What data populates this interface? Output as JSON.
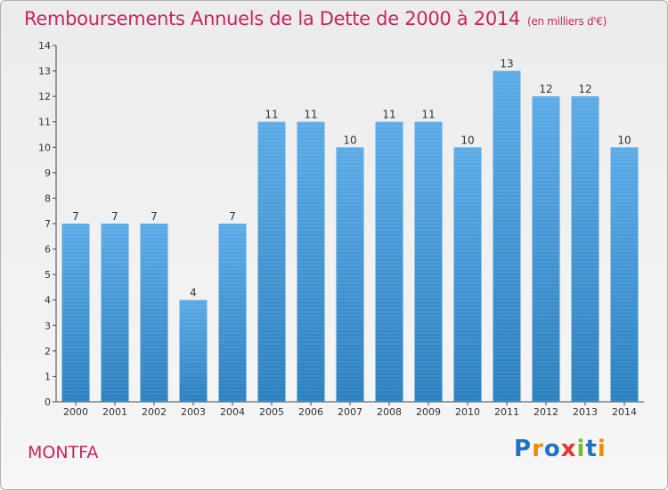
{
  "header": {
    "title": "Remboursements Annuels de la Dette de 2000 à 2014",
    "unit": "(en milliers d'€)"
  },
  "footer": {
    "commune": "MONTFA",
    "logo_letters": [
      "P",
      "r",
      "o",
      "x",
      "i",
      "t",
      "i"
    ],
    "logo_colors": [
      "#1e73be",
      "#f08c00",
      "#1e73be",
      "#e8342a",
      "#7cb82f",
      "#1e73be",
      "#f08c00"
    ]
  },
  "colors": {
    "title": "#c8245f",
    "bar_light": "#5aaae6",
    "bar_dark": "#2a7fbf",
    "axis": "#444444"
  },
  "chart_data": {
    "type": "bar",
    "title": "Remboursements Annuels de la Dette de 2000 à 2014",
    "xlabel": "",
    "ylabel": "",
    "categories": [
      "2000",
      "2001",
      "2002",
      "2003",
      "2004",
      "2005",
      "2006",
      "2007",
      "2008",
      "2009",
      "2010",
      "2011",
      "2012",
      "2013",
      "2014"
    ],
    "values": [
      7,
      7,
      7,
      4,
      7,
      11,
      11,
      10,
      11,
      11,
      10,
      13,
      12,
      12,
      10
    ],
    "ylim": [
      0,
      14
    ],
    "yticks": [
      "0",
      "1",
      "2",
      "3",
      "4",
      "5",
      "6",
      "7",
      "8",
      "9",
      "10",
      "11",
      "12",
      "13",
      "14"
    ],
    "grid": false,
    "legend": "none"
  }
}
